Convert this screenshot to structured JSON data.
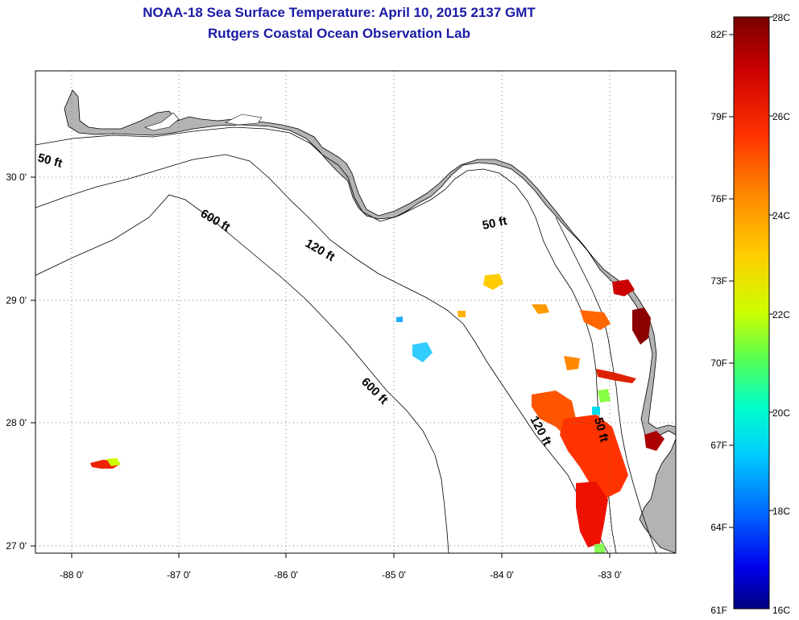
{
  "header": {
    "title_line1": "NOAA-18 Sea Surface Temperature:  April 10, 2015 2137 GMT",
    "title_line2": "Rutgers Coastal Ocean Observation Lab"
  },
  "map": {
    "land_color": "#b3b3b3",
    "water_color": "#ffffff",
    "lon_ticks": [
      "-88 0'",
      "-87 0'",
      "-86 0'",
      "-85 0'",
      "-84 0'",
      "-83 0'"
    ],
    "lat_ticks": [
      "30 0'",
      "29 0'",
      "28 0'",
      "27 0'"
    ],
    "contour_labels": [
      "50 ft",
      "50 ft",
      "50 ft",
      "120 ft",
      "120 ft",
      "600 ft",
      "600 ft"
    ]
  },
  "colorbar": {
    "fahrenheit_labels": [
      "82F",
      "79F",
      "76F",
      "73F",
      "70F",
      "67F",
      "64F",
      "61F"
    ],
    "celsius_labels": [
      "28C",
      "26C",
      "24C",
      "22C",
      "20C",
      "18C",
      "16C"
    ],
    "gradient_colors": [
      "#7a0000",
      "#cc0000",
      "#ff3300",
      "#ff8800",
      "#ffcc00",
      "#ccff00",
      "#55ff55",
      "#00ffcc",
      "#00ccff",
      "#0066ff",
      "#0000ee",
      "#000080"
    ]
  }
}
